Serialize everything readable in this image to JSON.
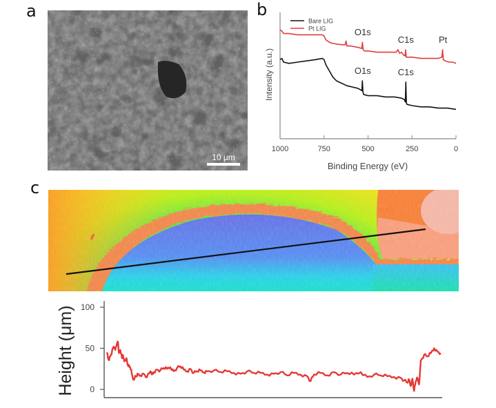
{
  "panels": {
    "a": {
      "label": "a",
      "description": "SEM image of Pt-LIG surface",
      "scale_bar": "10 μm"
    },
    "b": {
      "label": "b"
    },
    "c": {
      "label": "c",
      "description": "3D optical profilometry color height map with line-profile path"
    }
  },
  "chart_data": [
    {
      "type": "line",
      "panel": "b",
      "title": "",
      "xlabel": "Binding Energy (eV)",
      "ylabel": "Intensity (a.u.)",
      "xlim": [
        1000,
        0
      ],
      "x_reversed": true,
      "xticks": [
        "1000",
        "750",
        "500",
        "250",
        "0"
      ],
      "xtick_values": [
        1000,
        750,
        500,
        250,
        0
      ],
      "yticks": [],
      "grid": false,
      "legend_position": "top-left",
      "series": [
        {
          "name": "Bare LIG",
          "color": "#111111",
          "x": [
            1000,
            990,
            980,
            950,
            900,
            850,
            800,
            760,
            750,
            740,
            720,
            700,
            680,
            650,
            620,
            590,
            560,
            545,
            535,
            532,
            529,
            525,
            500,
            450,
            400,
            350,
            310,
            295,
            288,
            285,
            282,
            278,
            250,
            200,
            150,
            100,
            50,
            0
          ],
          "y": [
            0.62,
            0.63,
            0.6,
            0.59,
            0.6,
            0.61,
            0.62,
            0.63,
            0.62,
            0.58,
            0.53,
            0.48,
            0.45,
            0.43,
            0.41,
            0.4,
            0.39,
            0.38,
            0.37,
            0.45,
            0.36,
            0.34,
            0.33,
            0.33,
            0.32,
            0.32,
            0.31,
            0.3,
            0.28,
            0.44,
            0.27,
            0.26,
            0.25,
            0.24,
            0.24,
            0.23,
            0.23,
            0.22
          ]
        },
        {
          "name": "Pt LIG",
          "color": "#e03c3c",
          "x": [
            1000,
            990,
            980,
            950,
            900,
            850,
            800,
            760,
            750,
            740,
            720,
            700,
            650,
            630,
            625,
            620,
            600,
            560,
            535,
            532,
            528,
            520,
            500,
            450,
            400,
            340,
            330,
            320,
            310,
            300,
            290,
            286,
            283,
            280,
            250,
            200,
            150,
            100,
            80,
            76,
            72,
            60,
            40,
            20,
            0
          ],
          "y": [
            0.86,
            0.85,
            0.83,
            0.83,
            0.82,
            0.82,
            0.82,
            0.82,
            0.81,
            0.78,
            0.76,
            0.75,
            0.74,
            0.74,
            0.77,
            0.73,
            0.73,
            0.72,
            0.71,
            0.76,
            0.7,
            0.69,
            0.69,
            0.68,
            0.68,
            0.68,
            0.7,
            0.67,
            0.68,
            0.66,
            0.65,
            0.7,
            0.64,
            0.64,
            0.64,
            0.63,
            0.63,
            0.63,
            0.64,
            0.7,
            0.62,
            0.61,
            0.6,
            0.6,
            0.59
          ]
        }
      ],
      "annotations": [
        {
          "text": "O1s",
          "series": "Pt LIG",
          "x": 530
        },
        {
          "text": "C1s",
          "series": "Pt LIG",
          "x": 285
        },
        {
          "text": "Pt",
          "series": "Pt LIG",
          "x": 74
        },
        {
          "text": "O1s",
          "series": "Bare LIG",
          "x": 530
        },
        {
          "text": "C1s",
          "series": "Bare LIG",
          "x": 285
        }
      ]
    },
    {
      "type": "line",
      "panel": "c",
      "title": "",
      "xlabel": "",
      "ylabel": "Height (μm)",
      "ylim": [
        -10,
        105
      ],
      "yticks": [
        "0",
        "50",
        "100"
      ],
      "ytick_values": [
        0,
        50,
        100
      ],
      "xlim": [
        0,
        100
      ],
      "grid": false,
      "series": [
        {
          "name": "Height profile",
          "color": "#e53935",
          "x": [
            0,
            0.5,
            1,
            1.5,
            2,
            2.5,
            3,
            3.3,
            3.6,
            4,
            4.5,
            4.8,
            5.2,
            5.8,
            6.2,
            6.8,
            7.3,
            7.8,
            8.3,
            8.8,
            9.3,
            10,
            11,
            12,
            13,
            13.5,
            14,
            15,
            16,
            17,
            18,
            19,
            20,
            21,
            22,
            23,
            24,
            25,
            26,
            27,
            28,
            29,
            30,
            32,
            34,
            36,
            38,
            40,
            42,
            44,
            46,
            48,
            50,
            52,
            54,
            56,
            58,
            60,
            61,
            62,
            64,
            66,
            68,
            70,
            72,
            74,
            76,
            78,
            80,
            82,
            84,
            86,
            88,
            89,
            90,
            90.5,
            91,
            91.5,
            92,
            92.5,
            93,
            93.5,
            94,
            95,
            96,
            97,
            98,
            99,
            100
          ],
          "y": [
            45,
            36,
            40,
            46,
            52,
            48,
            56,
            58,
            44,
            48,
            38,
            42,
            34,
            38,
            30,
            27,
            24,
            12,
            14,
            16,
            18,
            17,
            19,
            15,
            22,
            18,
            21,
            24,
            23,
            26,
            25,
            27,
            22,
            26,
            28,
            24,
            22,
            25,
            20,
            22,
            23,
            21,
            22,
            23,
            21,
            22,
            20,
            19,
            22,
            20,
            20,
            18,
            19,
            21,
            17,
            20,
            18,
            16,
            10,
            18,
            20,
            17,
            21,
            18,
            20,
            18,
            21,
            15,
            18,
            17,
            16,
            15,
            14,
            11,
            8,
            12,
            4,
            13,
            -2,
            10,
            14,
            6,
            35,
            42,
            40,
            44,
            50,
            46,
            44
          ]
        }
      ]
    }
  ],
  "line_profile": {
    "start_label": "",
    "end_label": ""
  }
}
